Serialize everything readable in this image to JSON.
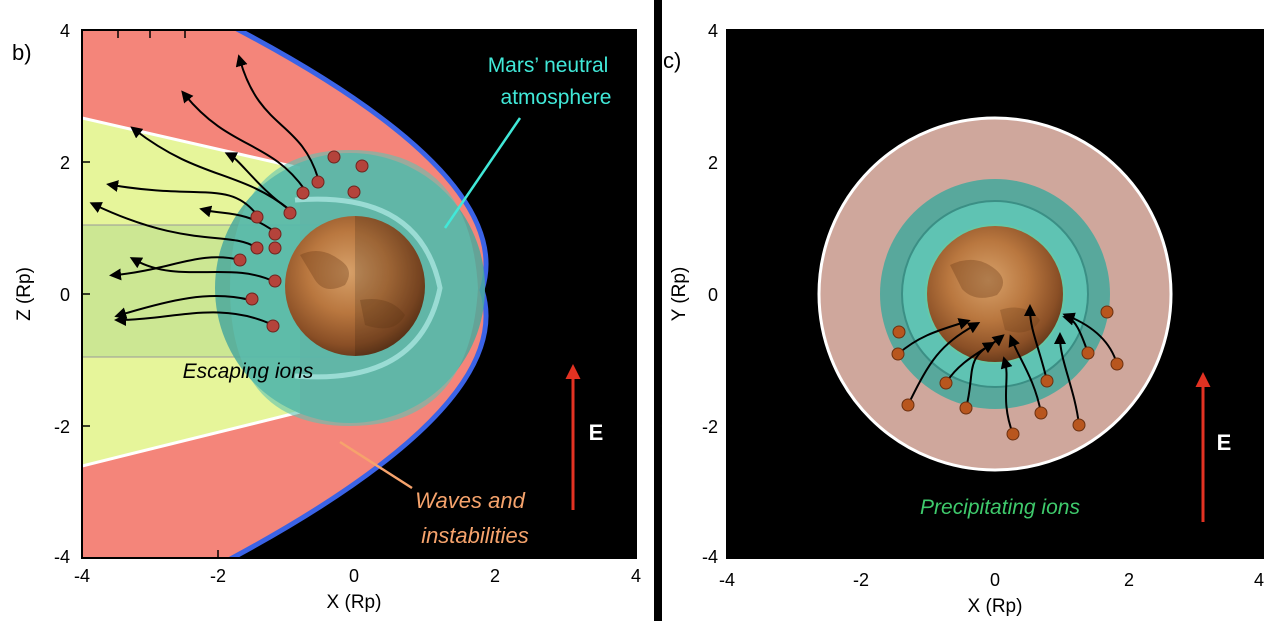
{
  "panel_b": {
    "label": "b)",
    "x_axis": {
      "title": "X (Rp)",
      "ticks": [
        "-4",
        "-2",
        "0",
        "2",
        "4"
      ]
    },
    "y_axis": {
      "title": "Z (Rp)",
      "ticks": [
        "4",
        "2",
        "0",
        "-2",
        "-4"
      ]
    },
    "annotations": {
      "atmosphere": [
        "Mars’ neutral",
        "atmosphere"
      ],
      "escaping": "Escaping ions",
      "waves": [
        "Waves and",
        "instabilities"
      ],
      "field": "E"
    }
  },
  "panel_c": {
    "label": "c)",
    "x_axis": {
      "title": "X (Rp)",
      "ticks": [
        "-4",
        "-2",
        "0",
        "2",
        "4"
      ]
    },
    "y_axis": {
      "title": "Y (Rp)",
      "ticks": [
        "4",
        "2",
        "0",
        "-2",
        "-4"
      ]
    },
    "annotations": {
      "precipitating": "Precipitating ions",
      "field": "E"
    }
  },
  "colors": {
    "bow_shock": "#3b63e6",
    "magnetosheath": "#f4857a",
    "tail": "#e6f59a",
    "atmosphere": "#5fc3b3",
    "escaping_ion": "#b4433b",
    "precipitating_ion": "#b8561e",
    "field_arrow": "#e23222",
    "label_cyan": "#41e8d8",
    "label_orange": "#f6a36c",
    "label_green": "#3fca6c"
  }
}
